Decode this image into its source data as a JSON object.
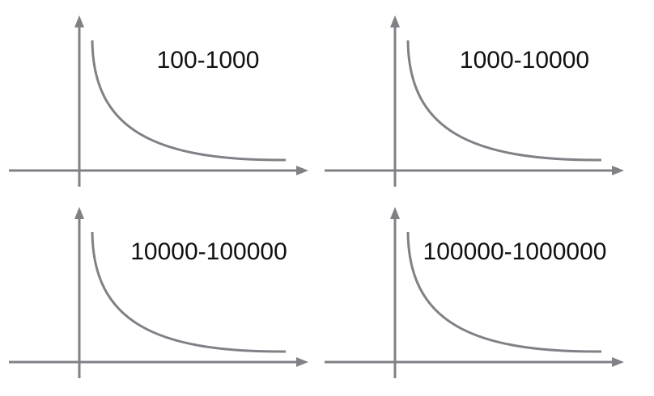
{
  "panels": [
    {
      "label": "100-1000"
    },
    {
      "label": "1000-10000"
    },
    {
      "label": "10000-100000"
    },
    {
      "label": "100000-1000000"
    }
  ],
  "colors": {
    "axis": "#7f8186",
    "curve": "#7f8186",
    "text": "#111111"
  }
}
